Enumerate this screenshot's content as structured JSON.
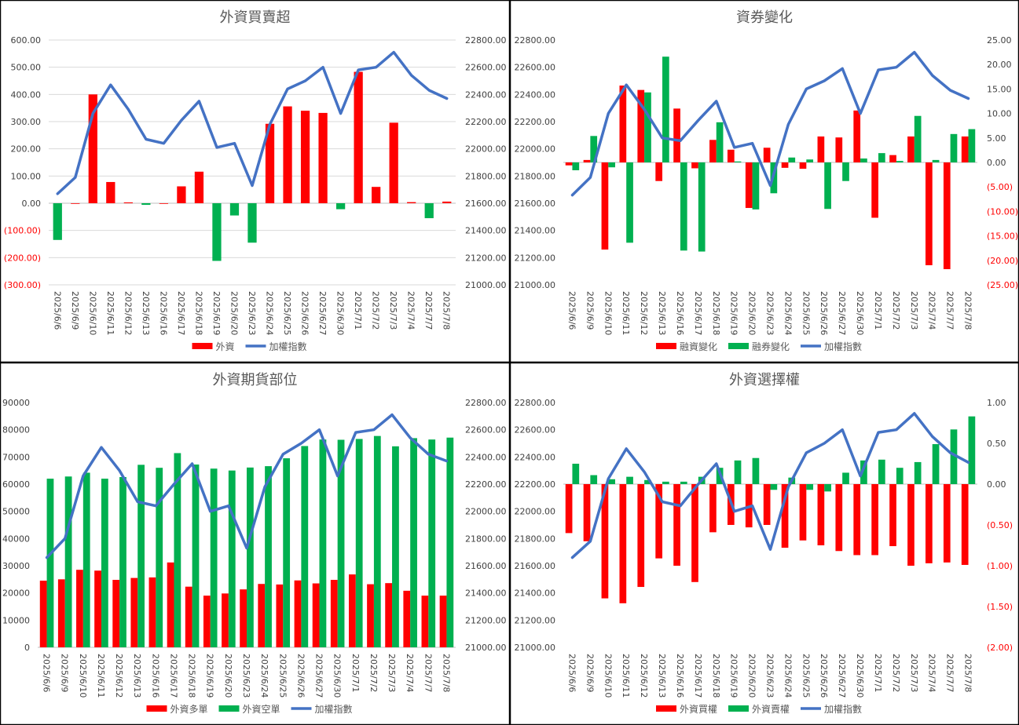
{
  "chart_data": [
    {
      "type": "bar",
      "title": "外資買賣超",
      "categories": [
        "2025/6/6",
        "2025/6/9",
        "2025/6/10",
        "2025/6/11",
        "2025/6/12",
        "2025/6/13",
        "2025/6/16",
        "2025/6/17",
        "2025/6/18",
        "2025/6/19",
        "2025/6/20",
        "2025/6/23",
        "2025/6/24",
        "2025/6/25",
        "2025/6/26",
        "2025/6/27",
        "2025/6/30",
        "2025/7/1",
        "2025/7/2",
        "2025/7/3",
        "2025/7/4",
        "2025/7/7",
        "2025/7/8"
      ],
      "bar_series": [
        {
          "name": "外資",
          "colors": {
            "positive": "#ff0000",
            "negative": "#00b050"
          },
          "values": [
            -135,
            0,
            400,
            78,
            3,
            -6,
            0,
            62,
            116,
            -212,
            -45,
            -145,
            292,
            356,
            340,
            332,
            -22,
            483,
            60,
            296,
            4,
            -55,
            6
          ]
        }
      ],
      "line_series": [
        {
          "name": "加權指數",
          "color": "#4472c4",
          "values": [
            21670,
            21790,
            22260,
            22470,
            22290,
            22070,
            22040,
            22210,
            22350,
            22010,
            22040,
            21730,
            22180,
            22440,
            22500,
            22600,
            22260,
            22580,
            22600,
            22710,
            22540,
            22430,
            22370
          ]
        }
      ],
      "y_left": {
        "min": -300,
        "max": 600,
        "step": 100,
        "ticks": [
          "(300.00)",
          "(200.00)",
          "(100.00)",
          "0.00",
          "100.00",
          "200.00",
          "300.00",
          "400.00",
          "500.00",
          "600.00"
        ]
      },
      "y_right": {
        "min": 21000,
        "max": 22800,
        "step": 200,
        "ticks": [
          "21000.00",
          "21200.00",
          "21400.00",
          "21600.00",
          "21800.00",
          "22000.00",
          "22200.00",
          "22400.00",
          "22600.00",
          "22800.00"
        ]
      },
      "grid": true,
      "legend_position": "bottom"
    },
    {
      "type": "bar",
      "title": "資券變化",
      "categories": [
        "2025/6/6",
        "2025/6/9",
        "2025/6/10",
        "2025/6/11",
        "2025/6/12",
        "2025/6/13",
        "2025/6/16",
        "2025/6/17",
        "2025/6/18",
        "2025/6/19",
        "2025/6/20",
        "2025/6/23",
        "2025/6/24",
        "2025/6/25",
        "2025/6/26",
        "2025/6/27",
        "2025/6/30",
        "2025/7/1",
        "2025/7/2",
        "2025/7/3",
        "2025/7/4",
        "2025/7/7",
        "2025/7/8"
      ],
      "bar_series": [
        {
          "name": "融資變化",
          "color": "#ff0000",
          "values": [
            -0.6,
            0.5,
            -17.8,
            15.7,
            14.8,
            -3.8,
            11.0,
            -1.2,
            4.6,
            2.6,
            -9.3,
            3.0,
            -1.1,
            -1.3,
            5.3,
            5.1,
            10.6,
            -11.3,
            1.5,
            5.3,
            -21.0,
            -21.8,
            5.3
          ]
        },
        {
          "name": "融券變化",
          "color": "#00b050",
          "values": [
            -1.6,
            5.4,
            -1.0,
            -16.4,
            14.3,
            21.6,
            -18.0,
            -18.2,
            8.2,
            0.2,
            -9.6,
            -6.3,
            1.0,
            0.6,
            -9.5,
            -3.8,
            0.8,
            1.9,
            0.3,
            9.5,
            0.5,
            5.8,
            6.8
          ]
        }
      ],
      "line_series": [
        {
          "name": "加權指數",
          "color": "#4472c4",
          "values": [
            21660,
            21790,
            22260,
            22470,
            22290,
            22080,
            22060,
            22210,
            22350,
            22010,
            22040,
            21730,
            22180,
            22440,
            22500,
            22590,
            22260,
            22580,
            22600,
            22710,
            22540,
            22430,
            22370
          ]
        }
      ],
      "y_left": {
        "min": 21000,
        "max": 22800,
        "step": 200,
        "ticks": [
          "21000.00",
          "21200.00",
          "21400.00",
          "21600.00",
          "21800.00",
          "22000.00",
          "22200.00",
          "22400.00",
          "22600.00",
          "22800.00"
        ]
      },
      "y_right": {
        "min": -25,
        "max": 25,
        "step": 5,
        "ticks": [
          "(25.00)",
          "(20.00)",
          "(15.00)",
          "(10.00)",
          "(5.00)",
          "0.00",
          "5.00",
          "10.00",
          "15.00",
          "20.00",
          "25.00"
        ]
      },
      "grid": false,
      "legend_position": "bottom"
    },
    {
      "type": "bar",
      "title": "外資期貨部位",
      "categories": [
        "2025/6/6",
        "2025/6/9",
        "2025/6/10",
        "2025/6/11",
        "2025/6/12",
        "2025/6/13",
        "2025/6/16",
        "2025/6/17",
        "2025/6/18",
        "2025/6/19",
        "2025/6/20",
        "2025/6/23",
        "2025/6/24",
        "2025/6/25",
        "2025/6/26",
        "2025/6/27",
        "2025/6/30",
        "2025/7/1",
        "2025/7/2",
        "2025/7/3",
        "2025/7/4",
        "2025/7/7",
        "2025/7/8"
      ],
      "bar_series": [
        {
          "name": "外資多單",
          "color": "#ff0000",
          "values": [
            24500,
            25000,
            28500,
            28200,
            24800,
            25500,
            25700,
            31200,
            22300,
            19000,
            19800,
            21300,
            23300,
            23100,
            24600,
            23500,
            24800,
            26800,
            23200,
            23600,
            20800,
            19000,
            19000
          ]
        },
        {
          "name": "外資空單",
          "color": "#00b050",
          "values": [
            62000,
            62800,
            64200,
            62000,
            62600,
            67100,
            66000,
            71400,
            67200,
            65700,
            65000,
            66100,
            66600,
            69500,
            74000,
            76400,
            76300,
            76600,
            77700,
            73900,
            76900,
            76400,
            77100
          ]
        }
      ],
      "line_series": [
        {
          "name": "加權指數",
          "color": "#4472c4",
          "values": [
            21660,
            21800,
            22260,
            22470,
            22300,
            22070,
            22040,
            22200,
            22350,
            22000,
            22040,
            21730,
            22180,
            22420,
            22500,
            22600,
            22260,
            22580,
            22600,
            22710,
            22540,
            22420,
            22370
          ]
        }
      ],
      "y_left": {
        "min": 0,
        "max": 90000,
        "step": 10000,
        "ticks": [
          "0",
          "10000",
          "20000",
          "30000",
          "40000",
          "50000",
          "60000",
          "70000",
          "80000",
          "90000"
        ]
      },
      "y_right": {
        "min": 21000,
        "max": 22800,
        "step": 200,
        "ticks": [
          "21000.00",
          "21200.00",
          "21400.00",
          "21600.00",
          "21800.00",
          "22000.00",
          "22200.00",
          "22400.00",
          "22600.00",
          "22800.00"
        ]
      },
      "grid": false,
      "legend_position": "bottom"
    },
    {
      "type": "bar",
      "title": "外資選擇權",
      "categories": [
        "2025/6/6",
        "2025/6/9",
        "2025/6/10",
        "2025/6/11",
        "2025/6/12",
        "2025/6/13",
        "2025/6/16",
        "2025/6/17",
        "2025/6/18",
        "2025/6/19",
        "2025/6/20",
        "2025/6/23",
        "2025/6/24",
        "2025/6/25",
        "2025/6/26",
        "2025/6/27",
        "2025/6/30",
        "2025/7/1",
        "2025/7/2",
        "2025/7/3",
        "2025/7/4",
        "2025/7/7",
        "2025/7/8"
      ],
      "bar_series": [
        {
          "name": "外資買權",
          "color": "#ff0000",
          "values": [
            -0.6,
            -0.7,
            -1.4,
            -1.46,
            -1.26,
            -0.91,
            -1.0,
            -1.2,
            -0.59,
            -0.5,
            -0.53,
            -0.5,
            -0.78,
            -0.69,
            -0.75,
            -0.82,
            -0.87,
            -0.87,
            -0.76,
            -1.0,
            -0.97,
            -0.96,
            -0.99
          ]
        },
        {
          "name": "外資賣權",
          "color": "#00b050",
          "values": [
            0.25,
            0.11,
            0.06,
            0.09,
            0.05,
            0.03,
            0.03,
            0.09,
            0.2,
            0.29,
            0.32,
            -0.07,
            0.08,
            -0.07,
            -0.09,
            0.14,
            0.29,
            0.3,
            0.2,
            0.27,
            0.49,
            0.67,
            0.83
          ]
        }
      ],
      "line_series": [
        {
          "name": "加權指數",
          "color": "#4472c4",
          "values": [
            21660,
            21780,
            22240,
            22460,
            22290,
            22070,
            22040,
            22200,
            22350,
            22000,
            22040,
            21720,
            22180,
            22430,
            22500,
            22600,
            22260,
            22580,
            22600,
            22720,
            22550,
            22430,
            22360
          ]
        }
      ],
      "y_left": {
        "min": 21000,
        "max": 22800,
        "step": 200,
        "ticks": [
          "21000.00",
          "21200.00",
          "21400.00",
          "21600.00",
          "21800.00",
          "22000.00",
          "22200.00",
          "22400.00",
          "22600.00",
          "22800.00"
        ]
      },
      "y_right": {
        "min": -2,
        "max": 1,
        "step": 0.5,
        "ticks": [
          "(2.00)",
          "(1.50)",
          "(1.00)",
          "(0.50)",
          "0.00",
          "0.50",
          "1.00"
        ]
      },
      "grid": false,
      "legend_position": "bottom"
    }
  ]
}
